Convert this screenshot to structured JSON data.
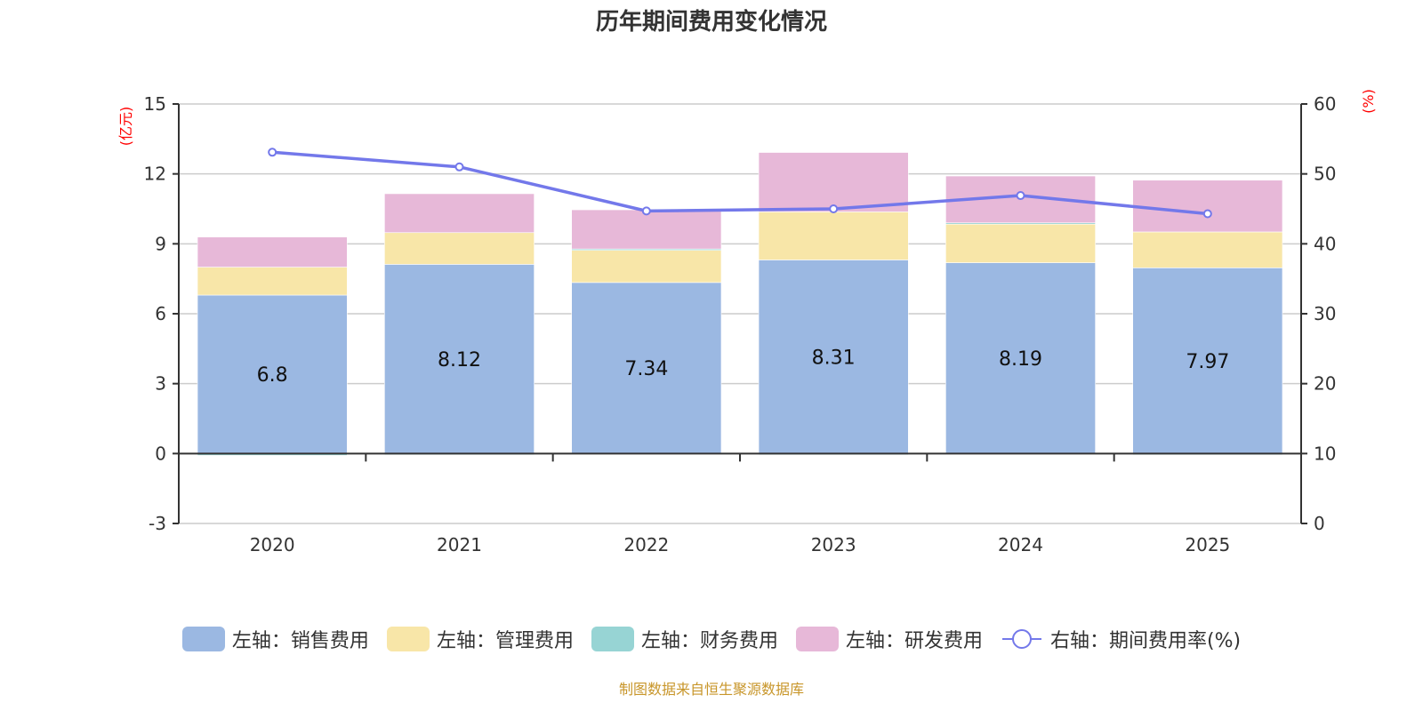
{
  "title": "历年期间费用变化情况",
  "source_note": "制图数据来自恒生聚源数据库",
  "chart_data": {
    "type": "bar",
    "stacked": true,
    "title": "历年期间费用变化情况",
    "categories": [
      "2020",
      "2021",
      "2022",
      "2023",
      "2024",
      "2025"
    ],
    "left_axis": {
      "unit_label": "(亿元)",
      "range": [
        -3,
        15
      ],
      "ticks": [
        -3,
        0,
        3,
        6,
        9,
        12,
        15
      ]
    },
    "right_axis": {
      "unit_label": "(%)",
      "range": [
        0,
        60
      ],
      "ticks": [
        0,
        10,
        20,
        30,
        40,
        50,
        60
      ]
    },
    "grid": true,
    "legend_position": "bottom",
    "series": [
      {
        "name": "左轴：销售费用",
        "axis": "left",
        "type": "bar",
        "color": "#9bb8e2",
        "values": [
          6.8,
          8.12,
          7.34,
          8.31,
          8.19,
          7.97
        ],
        "show_labels": true
      },
      {
        "name": "左轴：管理费用",
        "axis": "left",
        "type": "bar",
        "color": "#f8e6a8",
        "values": [
          1.2,
          1.36,
          1.42,
          2.06,
          1.7,
          1.54
        ]
      },
      {
        "name": "左轴：财务费用",
        "axis": "left",
        "type": "bar",
        "color": "#97d4d4",
        "values": [
          -0.08,
          -0.03,
          0.02,
          -0.02,
          0.01,
          -0.01
        ]
      },
      {
        "name": "左轴：研发费用",
        "axis": "left",
        "type": "bar",
        "color": "#e7b8d8",
        "values": [
          1.29,
          1.67,
          1.68,
          2.55,
          2.01,
          2.22
        ]
      },
      {
        "name": "右轴：期间费用率(%)",
        "axis": "right",
        "type": "line",
        "color": "#7378ea",
        "values": [
          53.1,
          51.0,
          44.7,
          45.0,
          46.9,
          44.3
        ]
      }
    ]
  }
}
